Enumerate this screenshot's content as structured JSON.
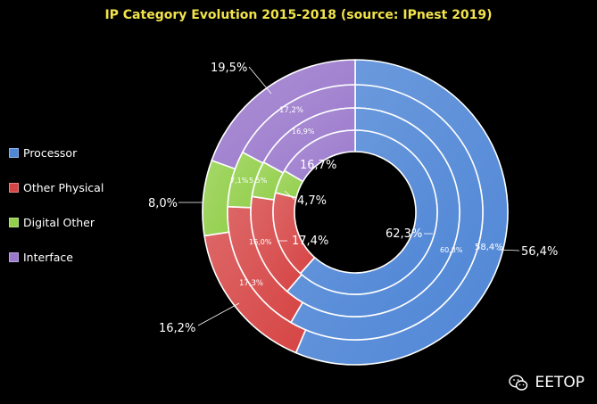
{
  "chart_data": {
    "type": "donut",
    "title": "IP Category Evolution 2015-2018 (source: IPnest 2019)",
    "categories": [
      "Processor",
      "Other Physical",
      "Digital Other",
      "Interface"
    ],
    "colors": [
      "#4f86d6",
      "#d64545",
      "#92cf4b",
      "#9a78cc"
    ],
    "legend_position": "left",
    "rings": [
      {
        "values": [
          56.4,
          16.2,
          8.0,
          19.5
        ],
        "labels": [
          "56,4%",
          "16,2%",
          "8,0%",
          "19,5%"
        ]
      },
      {
        "values": [
          58.4,
          17.3,
          7.1,
          17.2
        ],
        "labels": [
          "58,4%",
          "17,3%",
          "7,1%",
          "17,2%"
        ]
      },
      {
        "values": [
          60.8,
          16.0,
          5.5,
          16.9
        ],
        "labels": [
          "60,8%",
          "16,0%",
          "5,5%",
          "16,9%"
        ]
      },
      {
        "values": [
          62.3,
          17.4,
          4.7,
          16.7
        ],
        "labels": [
          "62,3%",
          "17,4%",
          "4,7%",
          "16,7%"
        ]
      }
    ]
  },
  "watermark": {
    "text": "EETOP",
    "icon": "wechat-icon"
  }
}
